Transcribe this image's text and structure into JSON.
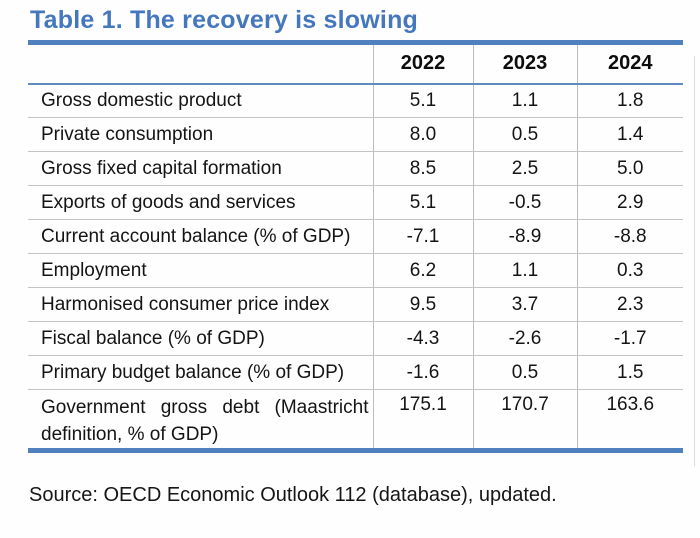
{
  "title": "Table 1. The recovery is slowing",
  "source": "Source: OECD Economic Outlook 112 (database), updated.",
  "colors": {
    "title_blue": "#4477BD",
    "thick_rule_blue": "#4E81BD",
    "header_rule_blue": "#5E8CBE",
    "grid_gray": "#C4C4C4",
    "text": "#141414"
  },
  "table": {
    "columns": [
      "2022",
      "2023",
      "2024"
    ],
    "rows": [
      {
        "label": "Gross domestic product",
        "values": [
          "5.1",
          "1.1",
          "1.8"
        ]
      },
      {
        "label": "Private consumption",
        "values": [
          "8.0",
          "0.5",
          "1.4"
        ]
      },
      {
        "label": "Gross fixed capital formation",
        "values": [
          "8.5",
          "2.5",
          "5.0"
        ]
      },
      {
        "label": "Exports of goods and services",
        "values": [
          "5.1",
          "-0.5",
          "2.9"
        ]
      },
      {
        "label": "Current account balance (% of GDP)",
        "values": [
          "-7.1",
          "-8.9",
          "-8.8"
        ]
      },
      {
        "label": "Employment",
        "values": [
          "6.2",
          "1.1",
          "0.3"
        ]
      },
      {
        "label": "Harmonised consumer price index",
        "values": [
          "9.5",
          "3.7",
          "2.3"
        ]
      },
      {
        "label": "Fiscal balance (% of GDP)",
        "values": [
          "-4.3",
          "-2.6",
          "-1.7"
        ]
      },
      {
        "label": "Primary budget balance (% of GDP)",
        "values": [
          "-1.6",
          "0.5",
          "1.5"
        ]
      },
      {
        "label": "Government gross debt (Maastricht definition, % of GDP)",
        "values": [
          "175.1",
          "170.7",
          "163.6"
        ]
      }
    ]
  }
}
